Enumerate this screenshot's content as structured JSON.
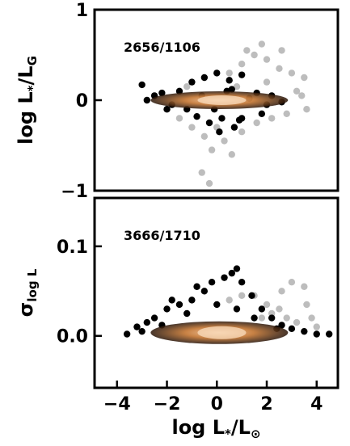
{
  "chart_data": [
    {
      "type": "scatter",
      "annotation": "2656/1106",
      "ylabel": {
        "main": "log L",
        "sub1": "*",
        "mid": "/L",
        "sub2": "G"
      },
      "xlim": [
        -4.9,
        4.85
      ],
      "ylim": [
        -1,
        1
      ],
      "yticks": [
        {
          "value": -1,
          "label": "−1"
        },
        0,
        1
      ],
      "series": [
        {
          "color": "#bdbdbd",
          "x": [
            0.5,
            1,
            1.5,
            2,
            2.5,
            3,
            3.5,
            1.8,
            1.2,
            2.2,
            2.8,
            3.2,
            0,
            -0.5,
            0.3,
            1,
            -1,
            -1.5,
            -2,
            0.6,
            -0.2,
            -0.6,
            -0.3,
            2,
            2.6,
            3.4,
            1.6,
            -1.2,
            0.8,
            3.6
          ],
          "y": [
            0.3,
            0.4,
            0.5,
            0.45,
            0.35,
            0.3,
            0.25,
            0.62,
            0.55,
            -0.2,
            -0.15,
            0.1,
            -0.3,
            -0.4,
            -0.45,
            -0.35,
            -0.3,
            -0.2,
            -0.1,
            -0.6,
            -0.55,
            -0.8,
            -0.92,
            0.2,
            0.55,
            0.05,
            -0.25,
            0.15,
            0.15,
            -0.1
          ]
        },
        {
          "color": "#000000",
          "x": [
            -3,
            -2.5,
            -2,
            -1.5,
            -1,
            -0.5,
            0,
            0.5,
            1,
            1.3,
            1.8,
            2.2,
            2.6,
            -0.8,
            -0.3,
            0.2,
            0.7,
            1,
            -1.8,
            -2.8,
            0.9,
            -0.1,
            0.4,
            -1.2,
            1.6,
            2,
            -0.6,
            0.1,
            0.6,
            -2.2
          ],
          "y": [
            0.17,
            0.05,
            -0.1,
            0.1,
            0.2,
            0.25,
            0.3,
            0.22,
            0.28,
            0.02,
            -0.15,
            0.05,
            -0.02,
            -0.18,
            -0.25,
            -0.2,
            -0.3,
            -0.2,
            -0.05,
            0,
            -0.22,
            -0.1,
            0.1,
            -0.1,
            0.08,
            -0.05,
            0.05,
            -0.35,
            0.12,
            0.08
          ]
        }
      ]
    },
    {
      "type": "scatter",
      "annotation": "3666/1710",
      "ylabel": {
        "main": "σ",
        "sub1": "log L"
      },
      "xlabel": {
        "main": "log L",
        "sub1": "*",
        "mid": "/L",
        "sub2": "⊙"
      },
      "xlim": [
        -4.9,
        4.85
      ],
      "ylim": [
        -0.058,
        0.154
      ],
      "xticks": [
        {
          "value": -4,
          "label": "−4"
        },
        {
          "value": -2,
          "label": "−2"
        },
        0,
        2,
        4
      ],
      "yticks": [
        {
          "value": 0,
          "label": "0.0"
        },
        {
          "value": 0.1,
          "label": "0.1"
        }
      ],
      "series": [
        {
          "color": "#bdbdbd",
          "x": [
            1.5,
            2,
            2.5,
            3,
            3.5,
            3.6,
            2.8,
            3.2,
            4,
            1,
            0.5,
            2.2,
            3.8,
            1.8,
            2.6
          ],
          "y": [
            0.045,
            0.035,
            0.03,
            0.06,
            0.055,
            0.035,
            0.02,
            0.015,
            0.01,
            0.045,
            0.04,
            0.025,
            0.02,
            0.02,
            0.05
          ]
        },
        {
          "color": "#000000",
          "x": [
            -3.6,
            -3.2,
            -2.8,
            -2.5,
            -2,
            -1.5,
            -1,
            -0.5,
            -0.2,
            0.3,
            0.6,
            0.8,
            1,
            1.4,
            1.8,
            2.2,
            2.6,
            3,
            3.5,
            4,
            4.5,
            -2.2,
            -1.2,
            0,
            0.8,
            1.5,
            -0.8,
            -1.8,
            -3,
            2.4
          ],
          "y": [
            0.002,
            0.01,
            0.015,
            0.02,
            0.03,
            0.035,
            0.04,
            0.05,
            0.06,
            0.065,
            0.07,
            0.075,
            0.06,
            0.045,
            0.03,
            0.02,
            0.012,
            0.008,
            0.005,
            0.002,
            0.002,
            0.012,
            0.025,
            0.035,
            0.03,
            0.02,
            0.055,
            0.04,
            0.005,
            0.008
          ]
        }
      ]
    }
  ]
}
